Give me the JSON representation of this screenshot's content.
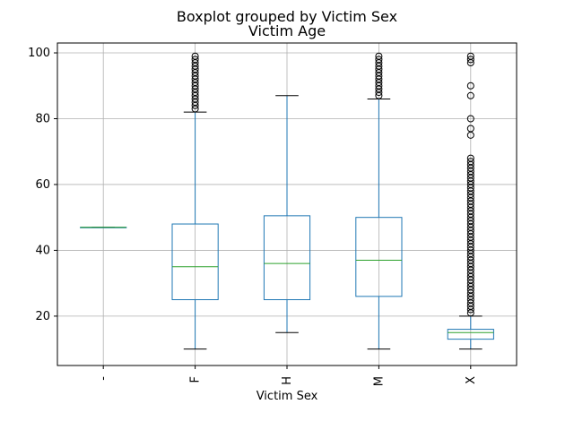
{
  "chart_data": {
    "type": "box",
    "suptitle": "Boxplot grouped by Victim Sex",
    "title": "Victim Age",
    "xlabel": "Victim Sex",
    "ylabel": "",
    "categories": [
      "-",
      "F",
      "H",
      "M",
      "X"
    ],
    "ylim": [
      5,
      103
    ],
    "yticks": [
      20,
      40,
      60,
      80,
      100
    ],
    "grid": true,
    "colors": {
      "box": "#1f77b4",
      "median": "#2ca02c",
      "cap": "#000000",
      "grid": "#b0b0b0",
      "axes": "#000000"
    },
    "boxes": [
      {
        "category": "-",
        "whislo": 47,
        "q1": 47,
        "med": 47,
        "q3": 47,
        "whishi": 47,
        "fliers": []
      },
      {
        "category": "F",
        "whislo": 10,
        "q1": 25,
        "med": 35,
        "q3": 48,
        "whishi": 82,
        "fliers": [
          83,
          84,
          85,
          86,
          87,
          88,
          89,
          90,
          91,
          92,
          93,
          94,
          95,
          96,
          97,
          98,
          99
        ]
      },
      {
        "category": "H",
        "whislo": 15,
        "q1": 25,
        "med": 36,
        "q3": 50.5,
        "whishi": 87,
        "fliers": []
      },
      {
        "category": "M",
        "whislo": 10,
        "q1": 26,
        "med": 37,
        "q3": 50,
        "whishi": 86,
        "fliers": [
          87,
          88,
          89,
          90,
          91,
          92,
          93,
          94,
          95,
          96,
          97,
          98,
          99
        ]
      },
      {
        "category": "X",
        "whislo": 10,
        "q1": 13,
        "med": 15,
        "q3": 16,
        "whishi": 20,
        "fliers": [
          21,
          22,
          23,
          24,
          25,
          26,
          27,
          28,
          29,
          30,
          31,
          32,
          33,
          34,
          35,
          36,
          37,
          38,
          39,
          40,
          41,
          42,
          43,
          44,
          45,
          46,
          47,
          48,
          49,
          50,
          51,
          52,
          53,
          54,
          55,
          56,
          57,
          58,
          59,
          60,
          61,
          62,
          63,
          64,
          65,
          66,
          67,
          68,
          75,
          77,
          80,
          87,
          90,
          97,
          98,
          99
        ]
      }
    ]
  }
}
